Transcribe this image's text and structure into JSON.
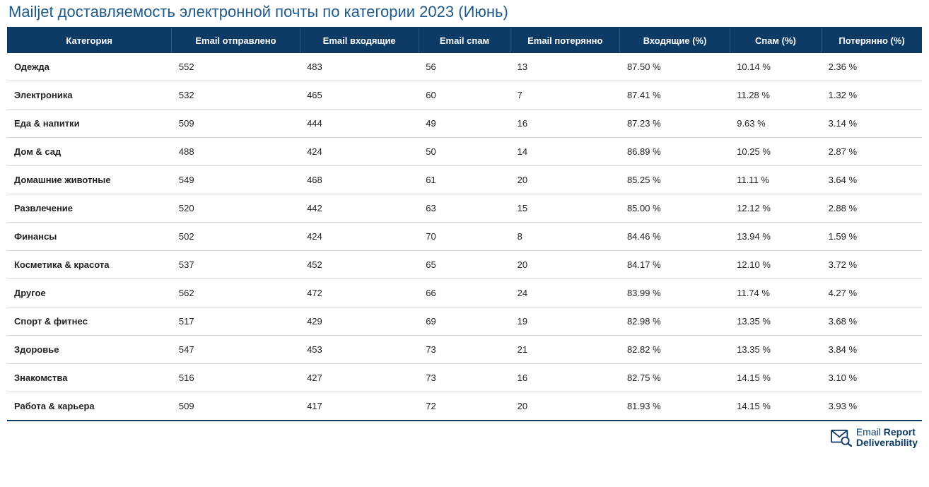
{
  "title": "Mailjet доставляемость электронной почты по категории 2023 (Июнь)",
  "table": {
    "columns": [
      "Категория",
      "Email отправлено",
      "Email входящие",
      "Email спам",
      "Email потерянно",
      "Входящие (%)",
      "Спам (%)",
      "Потерянно (%)"
    ],
    "col_widths": [
      "18%",
      "14%",
      "13%",
      "10%",
      "12%",
      "12%",
      "10%",
      "11%"
    ],
    "rows": [
      [
        "Одежда",
        "552",
        "483",
        "56",
        "13",
        "87.50 %",
        "10.14 %",
        "2.36 %"
      ],
      [
        "Электроника",
        "532",
        "465",
        "60",
        "7",
        "87.41 %",
        "11.28 %",
        "1.32 %"
      ],
      [
        "Еда & напитки",
        "509",
        "444",
        "49",
        "16",
        "87.23 %",
        "9.63 %",
        "3.14 %"
      ],
      [
        "Дом & сад",
        "488",
        "424",
        "50",
        "14",
        "86.89 %",
        "10.25 %",
        "2.87 %"
      ],
      [
        "Домашние животные",
        "549",
        "468",
        "61",
        "20",
        "85.25 %",
        "11.11 %",
        "3.64 %"
      ],
      [
        "Развлечение",
        "520",
        "442",
        "63",
        "15",
        "85.00 %",
        "12.12 %",
        "2.88 %"
      ],
      [
        "Финансы",
        "502",
        "424",
        "70",
        "8",
        "84.46 %",
        "13.94 %",
        "1.59 %"
      ],
      [
        "Косметика & красота",
        "537",
        "452",
        "65",
        "20",
        "84.17 %",
        "12.10 %",
        "3.72 %"
      ],
      [
        "Другое",
        "562",
        "472",
        "66",
        "24",
        "83.99 %",
        "11.74 %",
        "4.27 %"
      ],
      [
        "Спорт & фитнес",
        "517",
        "429",
        "69",
        "19",
        "82.98 %",
        "13.35 %",
        "3.68 %"
      ],
      [
        "Здоровье",
        "547",
        "453",
        "73",
        "21",
        "82.82 %",
        "13.35 %",
        "3.84 %"
      ],
      [
        "Знакомства",
        "516",
        "427",
        "73",
        "16",
        "82.75 %",
        "14.15 %",
        "3.10 %"
      ],
      [
        "Работа & карьера",
        "509",
        "417",
        "72",
        "20",
        "81.93 %",
        "14.15 %",
        "3.93 %"
      ]
    ]
  },
  "style": {
    "title_color": "#1f5a8a",
    "header_bg": "#0d3b66",
    "header_text": "#ffffff",
    "row_border": "#d9d9d9",
    "body_text": "#222222",
    "background": "#ffffff",
    "title_fontsize": 22,
    "header_fontsize": 13,
    "cell_fontsize": 13
  },
  "footer": {
    "brand_plain": "Email ",
    "brand_bold": "Report",
    "tagline": "Deliverability",
    "icon_color": "#0d3b66",
    "text_color": "#0d3b66"
  }
}
